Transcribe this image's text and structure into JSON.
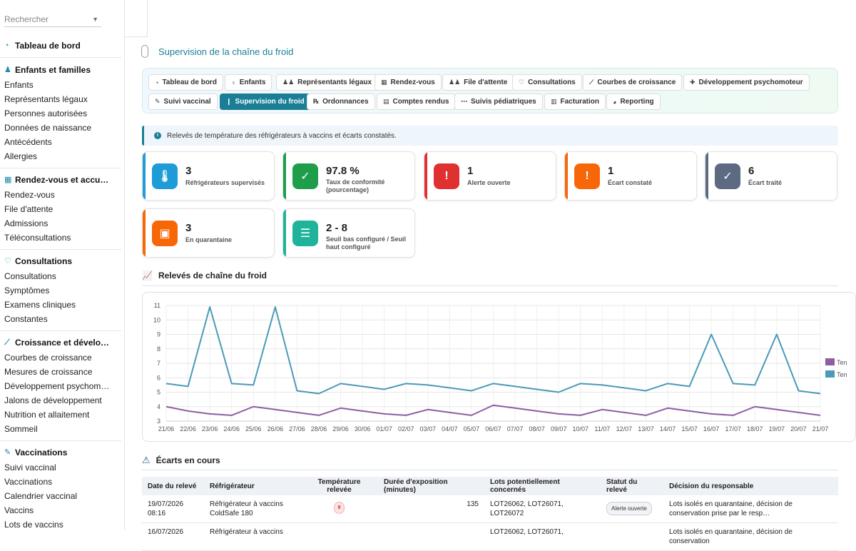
{
  "sidebar": {
    "search_placeholder": "Rechercher",
    "dashboard": "Tableau de bord",
    "sections": [
      {
        "title": "Enfants et familles",
        "items": [
          "Enfants",
          "Représentants légaux",
          "Personnes autorisées",
          "Données de naissance",
          "Antécédents",
          "Allergies"
        ]
      },
      {
        "title": "Rendez-vous et accu…",
        "items": [
          "Rendez-vous",
          "File d'attente",
          "Admissions",
          "Téléconsultations"
        ]
      },
      {
        "title": "Consultations",
        "items": [
          "Consultations",
          "Symptômes",
          "Examens cliniques",
          "Constantes"
        ]
      },
      {
        "title": "Croissance et dévelo…",
        "items": [
          "Courbes de croissance",
          "Mesures de croissance",
          "Développement psychom…",
          "Jalons de développement",
          "Nutrition et allaitement",
          "Sommeil"
        ]
      },
      {
        "title": "Vaccinations",
        "items": [
          "Suivi vaccinal",
          "Vaccinations",
          "Calendrier vaccinal",
          "Vaccins",
          "Lots de vaccins"
        ]
      }
    ]
  },
  "page": {
    "title": "Supervision de la chaîne du froid"
  },
  "tabs": [
    "Tableau de bord",
    "Enfants",
    "Représentants légaux",
    "Rendez-vous",
    "File d'attente",
    "Consultations",
    "Courbes de croissance",
    "Développement psychomoteur",
    "Suivi vaccinal",
    "Supervision du froid",
    "Ordonnances",
    "Comptes rendus",
    "Suivis pédiatriques",
    "Facturation",
    "Reporting"
  ],
  "info": "Relevés de température des réfrigérateurs à vaccins et écarts constatés.",
  "cards": [
    {
      "value": "3",
      "label": "Réfrigérateurs supervisés",
      "color": "#1f9bd7"
    },
    {
      "value": "97.8 %",
      "label": "Taux de conformité (pourcentage)",
      "color": "#1e9e4a"
    },
    {
      "value": "1",
      "label": "Alerte ouverte",
      "color": "#e03131"
    },
    {
      "value": "1",
      "label": "Écart constaté",
      "color": "#f76707"
    },
    {
      "value": "6",
      "label": "Écart traité",
      "color": "#5c6a82"
    },
    {
      "value": "3",
      "label": "En quarantaine",
      "color": "#f76707"
    },
    {
      "value": "2 - 8",
      "label": "Seuil bas configuré / Seuil haut configuré",
      "color": "#20b39b"
    }
  ],
  "chart_section": "Relevés de chaîne du froid",
  "chart_data": {
    "type": "line",
    "x": [
      "21/06",
      "22/06",
      "23/06",
      "24/06",
      "25/06",
      "26/06",
      "27/06",
      "28/06",
      "29/06",
      "30/06",
      "01/07",
      "02/07",
      "03/07",
      "04/07",
      "05/07",
      "06/07",
      "07/07",
      "08/07",
      "09/07",
      "10/07",
      "11/07",
      "12/07",
      "13/07",
      "14/07",
      "15/07",
      "16/07",
      "17/07",
      "18/07",
      "19/07",
      "20/07",
      "21/07"
    ],
    "series": [
      {
        "name": "Ten",
        "color": "#8e5ea2",
        "values": [
          4.0,
          3.7,
          3.5,
          3.4,
          4.0,
          3.8,
          3.6,
          3.4,
          3.9,
          3.7,
          3.5,
          3.4,
          3.8,
          3.6,
          3.4,
          4.1,
          3.9,
          3.7,
          3.5,
          3.4,
          3.8,
          3.6,
          3.4,
          3.9,
          3.7,
          3.5,
          3.4,
          4.0,
          3.8,
          3.6,
          3.4
        ]
      },
      {
        "name": "Ten",
        "color": "#4a9ab8",
        "values": [
          5.6,
          5.4,
          10.9,
          5.6,
          5.5,
          10.9,
          5.1,
          4.9,
          5.6,
          5.4,
          5.2,
          5.6,
          5.5,
          5.3,
          5.1,
          5.6,
          5.4,
          5.2,
          5.0,
          5.6,
          5.5,
          5.3,
          5.1,
          5.6,
          5.4,
          9.0,
          5.6,
          5.5,
          9.0,
          5.1,
          4.9
        ]
      }
    ],
    "ylim": [
      3,
      11
    ],
    "yticks": [
      3,
      4,
      5,
      6,
      7,
      8,
      9,
      10,
      11
    ],
    "grid": true,
    "legend": "right"
  },
  "table_section": "Écarts en cours",
  "table": {
    "headers": [
      "Date du relevé",
      "Réfrigérateur",
      "Température relevée",
      "Durée d'exposition (minutes)",
      "Lots potentiellement concernés",
      "Statut du relevé",
      "Décision du responsable"
    ],
    "rows": [
      {
        "date": "19/07/2026 08:16",
        "fridge": "Réfrigérateur à vaccins ColdSafe 180",
        "temp": "9",
        "duration": "135",
        "lots": "LOT26062, LOT26071, LOT26072",
        "status": "Alerte ouverte",
        "decision": "Lots isolés en quarantaine, décision de conservation prise par le resp…"
      },
      {
        "date": "16/07/2026",
        "fridge": "Réfrigérateur à vaccins",
        "temp": "",
        "duration": "",
        "lots": "LOT26062, LOT26071,",
        "status": "",
        "decision": "Lots isolés en quarantaine, décision de conservation"
      }
    ]
  }
}
